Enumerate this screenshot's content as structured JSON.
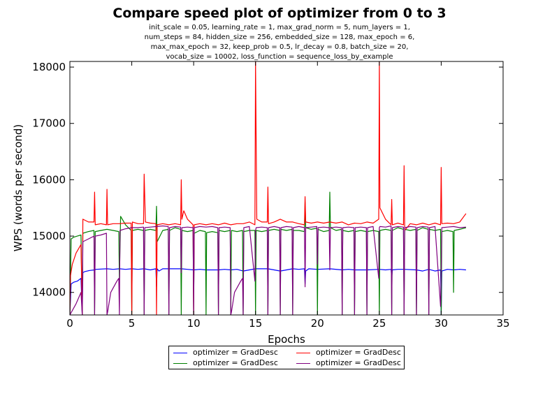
{
  "chart_data": {
    "type": "line",
    "title": "Compare speed plot of optimizer from 0 to 3",
    "subtitle_lines": [
      "init_scale = 0.05, learning_rate = 1, max_grad_norm = 5, num_layers = 1,",
      "num_steps = 84, hidden_size = 256, embedded_size = 128, max_epoch = 6,",
      "max_max_epoch = 32, keep_prob = 0.5, lr_decay = 0.8, batch_size = 20,",
      "vocab_size = 10002, loss_function = sequence_loss_by_example"
    ],
    "xlabel": "Epochs",
    "ylabel": "WPS (words per second)",
    "xlim": [
      0,
      35
    ],
    "ylim": [
      13600,
      18100
    ],
    "xticks": [
      0,
      5,
      10,
      15,
      20,
      25,
      30,
      35
    ],
    "yticks": [
      14000,
      15000,
      16000,
      17000,
      18000
    ],
    "grid": false,
    "legend_position": "below-center",
    "series": [
      {
        "name": "optimizer = GradDesc",
        "color": "#0000ff",
        "x": [
          0,
          0.1,
          0.3,
          0.6,
          0.9,
          1.0,
          1.05,
          1.2,
          1.6,
          2.0,
          2.1,
          3.0,
          3.5,
          4.0,
          4.5,
          5.0,
          5.5,
          6.0,
          6.5,
          6.95,
          7.0,
          7.05,
          7.2,
          7.5,
          8.0,
          9.0,
          9.5,
          10.0,
          10.5,
          11.0,
          12.0,
          12.5,
          13.0,
          13.5,
          14.0,
          15.0,
          16.0,
          16.5,
          17.0,
          18.0,
          18.5,
          18.95,
          19.0,
          19.05,
          19.3,
          20.0,
          21.0,
          22.0,
          22.5,
          23.0,
          24.0,
          25.0,
          25.5,
          25.95,
          26.0,
          26.05,
          26.5,
          27.0,
          28.0,
          28.5,
          29.0,
          29.5,
          29.95,
          30.0,
          30.05,
          30.5,
          31.0,
          31.5,
          32.0
        ],
        "y": [
          13600,
          14150,
          14180,
          14200,
          14250,
          13600,
          14350,
          14370,
          14390,
          14400,
          14410,
          14420,
          14410,
          14420,
          14410,
          14420,
          14410,
          14420,
          14400,
          14420,
          14100,
          14420,
          14380,
          14420,
          14420,
          14420,
          14410,
          14400,
          14410,
          14400,
          14400,
          14410,
          14400,
          14410,
          14380,
          14420,
          14420,
          14400,
          14380,
          14420,
          14410,
          14420,
          14150,
          14380,
          14420,
          14410,
          14420,
          14400,
          14410,
          14400,
          14400,
          14410,
          14400,
          14410,
          14250,
          14400,
          14410,
          14410,
          14400,
          14380,
          14410,
          14380,
          14400,
          13600,
          14380,
          14410,
          14400,
          14410,
          14400
        ]
      },
      {
        "name": "optimizer = GradDesc",
        "color": "#008000",
        "x": [
          0,
          0.1,
          0.3,
          0.6,
          0.9,
          1.0,
          1.05,
          1.5,
          1.95,
          2.0,
          2.05,
          2.5,
          3.0,
          3.5,
          3.95,
          4.0,
          4.1,
          4.5,
          4.95,
          5.0,
          5.05,
          5.5,
          5.95,
          6.0,
          6.05,
          6.5,
          6.95,
          7.0,
          7.05,
          7.5,
          7.95,
          8.0,
          8.05,
          8.5,
          8.95,
          9.0,
          9.05,
          9.5,
          9.95,
          10.0,
          10.05,
          10.5,
          10.95,
          11.0,
          11.05,
          11.5,
          11.95,
          12.0,
          12.05,
          12.5,
          12.95,
          13.0,
          13.05,
          13.5,
          13.95,
          14.0,
          14.05,
          14.5,
          14.95,
          15.0,
          15.05,
          15.5,
          15.95,
          16.0,
          16.05,
          16.5,
          16.95,
          17.0,
          17.05,
          17.5,
          17.95,
          18.0,
          18.05,
          18.5,
          18.95,
          19.0,
          19.05,
          19.5,
          19.95,
          20.0,
          20.05,
          20.5,
          20.95,
          21.0,
          21.05,
          21.5,
          21.95,
          22.0,
          22.05,
          22.5,
          22.95,
          23.0,
          23.05,
          23.5,
          23.95,
          24.0,
          24.05,
          24.5,
          24.95,
          25.0,
          25.05,
          25.5,
          25.95,
          26.0,
          26.05,
          26.5,
          26.95,
          27.0,
          27.05,
          27.5,
          27.95,
          28.0,
          28.05,
          28.5,
          28.95,
          29.0,
          29.05,
          29.5,
          29.95,
          30.0,
          30.05,
          30.5,
          30.95,
          31.0,
          31.05,
          31.5,
          32.0
        ],
        "y": [
          13600,
          14950,
          14980,
          15000,
          15020,
          13600,
          15050,
          15080,
          15100,
          13600,
          15080,
          15100,
          15120,
          15100,
          15080,
          14200,
          15350,
          15200,
          15100,
          13600,
          15100,
          15120,
          15100,
          13600,
          15100,
          15120,
          15100,
          15530,
          14900,
          15100,
          15120,
          13600,
          15100,
          15150,
          15120,
          13600,
          15100,
          15080,
          15100,
          13600,
          15050,
          15100,
          15080,
          13600,
          15060,
          15080,
          15060,
          13600,
          15100,
          15080,
          15100,
          13600,
          15100,
          15080,
          15100,
          13600,
          15080,
          15100,
          15100,
          13600,
          15100,
          15080,
          15100,
          13600,
          15100,
          15120,
          15100,
          13600,
          15120,
          15100,
          15120,
          13600,
          15100,
          15100,
          15080,
          15600,
          15150,
          15120,
          15140,
          13600,
          15120,
          15080,
          15100,
          15780,
          15150,
          15100,
          15120,
          13600,
          15100,
          15080,
          15100,
          13600,
          15080,
          15100,
          15080,
          13600,
          15080,
          15100,
          15080,
          13600,
          15100,
          15120,
          15100,
          13600,
          15100,
          15150,
          15120,
          13600,
          15120,
          15100,
          15120,
          13600,
          15100,
          15150,
          15120,
          13600,
          15120,
          15100,
          15120,
          13600,
          15080,
          15100,
          15080,
          14000,
          15100,
          15120,
          15150
        ]
      },
      {
        "name": "optimizer = GradDesc",
        "color": "#ff0000",
        "x": [
          0,
          0.05,
          0.2,
          0.5,
          0.9,
          1.0,
          1.05,
          1.5,
          1.95,
          2.0,
          2.05,
          2.5,
          2.95,
          3.0,
          3.05,
          3.5,
          4.0,
          4.5,
          4.95,
          5.0,
          5.05,
          5.5,
          5.95,
          6.0,
          6.1,
          6.5,
          6.95,
          7.0,
          7.05,
          7.5,
          8.0,
          8.5,
          8.95,
          9.0,
          9.05,
          9.2,
          9.5,
          9.95,
          10.0,
          10.05,
          10.5,
          11.0,
          11.5,
          12.0,
          12.5,
          13.0,
          13.5,
          14.0,
          14.5,
          14.95,
          15.0,
          15.1,
          15.5,
          15.95,
          16.0,
          16.05,
          16.5,
          17.0,
          17.5,
          18.0,
          18.5,
          18.95,
          19.0,
          19.05,
          19.5,
          20.0,
          20.5,
          21.0,
          21.5,
          22.0,
          22.5,
          23.0,
          23.5,
          24.0,
          24.5,
          24.95,
          25.0,
          25.05,
          25.5,
          25.95,
          26.0,
          26.05,
          26.5,
          26.95,
          27.0,
          27.05,
          27.5,
          28.0,
          28.5,
          29.0,
          29.5,
          29.95,
          30.0,
          30.05,
          30.5,
          31.0,
          31.5,
          32.0
        ],
        "y": [
          13600,
          14300,
          14500,
          14700,
          14850,
          13600,
          15300,
          15250,
          15250,
          15780,
          15200,
          15220,
          15200,
          15830,
          15200,
          15220,
          15220,
          15230,
          15230,
          13600,
          15250,
          15220,
          15220,
          16100,
          15250,
          15230,
          15220,
          13600,
          15200,
          15220,
          15200,
          15220,
          15200,
          16000,
          15300,
          15450,
          15300,
          15200,
          13600,
          15200,
          15220,
          15200,
          15220,
          15200,
          15230,
          15200,
          15220,
          15220,
          15250,
          15200,
          18100,
          15300,
          15250,
          15250,
          15870,
          15220,
          15250,
          15300,
          15250,
          15250,
          15220,
          15200,
          15700,
          15250,
          15230,
          15250,
          15230,
          15250,
          15230,
          15250,
          15200,
          15230,
          15220,
          15250,
          15230,
          15300,
          18100,
          15500,
          15300,
          15200,
          15650,
          15200,
          15230,
          15200,
          16250,
          15100,
          15220,
          15200,
          15230,
          15200,
          15230,
          15200,
          16220,
          15220,
          15230,
          15220,
          15250,
          15400
        ]
      },
      {
        "name": "optimizer = GradDesc",
        "color": "#800080",
        "x": [
          0,
          0.5,
          0.9,
          1.0,
          1.05,
          1.5,
          1.95,
          2.0,
          2.05,
          2.5,
          2.95,
          3.0,
          3.05,
          3.3,
          3.8,
          3.95,
          4.0,
          4.05,
          4.5,
          5.0,
          5.5,
          5.95,
          6.0,
          6.05,
          6.5,
          7.0,
          7.5,
          7.95,
          8.0,
          8.05,
          8.5,
          8.95,
          9.0,
          9.05,
          9.5,
          9.95,
          10.0,
          10.05,
          10.5,
          11.0,
          11.5,
          11.95,
          12.0,
          12.05,
          12.5,
          12.95,
          13.0,
          13.05,
          13.3,
          13.8,
          13.95,
          14.0,
          14.05,
          14.5,
          14.95,
          15.0,
          15.05,
          15.5,
          15.95,
          16.0,
          16.05,
          16.5,
          16.95,
          17.0,
          17.05,
          17.5,
          17.95,
          18.0,
          18.05,
          18.5,
          18.95,
          19.0,
          19.05,
          19.5,
          19.95,
          20.0,
          20.05,
          20.5,
          20.95,
          21.0,
          21.05,
          21.5,
          21.95,
          22.0,
          22.05,
          22.5,
          22.95,
          23.0,
          23.05,
          23.5,
          23.95,
          24.0,
          24.05,
          24.5,
          24.95,
          25.0,
          25.05,
          25.5,
          25.95,
          26.0,
          26.05,
          26.5,
          26.95,
          27.0,
          27.05,
          27.5,
          27.95,
          28.0,
          28.05,
          28.5,
          28.95,
          29.0,
          29.05,
          29.5,
          29.95,
          30.0,
          30.05,
          30.5,
          31.0,
          31.5,
          32.0
        ],
        "y": [
          13600,
          13800,
          14000,
          13600,
          14900,
          14950,
          15000,
          13600,
          15000,
          15020,
          15050,
          13600,
          13650,
          14000,
          14200,
          14250,
          13600,
          15100,
          15130,
          15150,
          15150,
          15160,
          13600,
          15150,
          15160,
          15170,
          15180,
          15170,
          13600,
          15150,
          15170,
          15160,
          14350,
          15150,
          15160,
          15150,
          13600,
          15150,
          15170,
          15160,
          15170,
          15150,
          13600,
          15150,
          15160,
          15150,
          13600,
          13650,
          14000,
          14200,
          14250,
          13600,
          15150,
          15170,
          14200,
          15100,
          15150,
          15160,
          15150,
          13600,
          15150,
          15170,
          15150,
          13600,
          15150,
          15170,
          15160,
          13600,
          15150,
          15170,
          15150,
          14100,
          15150,
          15160,
          15170,
          14500,
          15150,
          15160,
          15150,
          14400,
          15150,
          15160,
          15150,
          13600,
          15150,
          15160,
          15150,
          13600,
          15150,
          15160,
          15150,
          13600,
          15150,
          15170,
          14250,
          15150,
          15170,
          15160,
          15180,
          13600,
          15150,
          15170,
          15160,
          13600,
          15150,
          15170,
          15160,
          13600,
          15150,
          15170,
          15160,
          13600,
          15150,
          15170,
          13750,
          14400,
          15150,
          15160,
          15170,
          15150,
          15160
        ]
      }
    ]
  }
}
